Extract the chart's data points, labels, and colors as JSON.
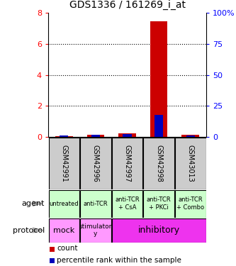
{
  "title": "GDS1336 / 161269_i_at",
  "samples": [
    "GSM42991",
    "GSM42996",
    "GSM42997",
    "GSM42998",
    "GSM43013"
  ],
  "count_values": [
    0.05,
    0.15,
    0.25,
    7.45,
    0.12
  ],
  "percentile_values": [
    1.0,
    1.5,
    2.2,
    17.5,
    1.2
  ],
  "ylim_left": [
    0,
    8
  ],
  "ylim_right": [
    0,
    100
  ],
  "yticks_left": [
    0,
    2,
    4,
    6,
    8
  ],
  "ytick_labels_left": [
    "0",
    "2",
    "4",
    "6",
    "8"
  ],
  "yticks_right": [
    0,
    25,
    50,
    75,
    100
  ],
  "ytick_labels_right": [
    "0",
    "25",
    "50",
    "75",
    "100%"
  ],
  "agent_labels": [
    "untreated",
    "anti-TCR",
    "anti-TCR\n+ CsA",
    "anti-TCR\n+ PKCi",
    "anti-TCR\n+ Combo"
  ],
  "agent_bg_color": "#ccffcc",
  "sample_bg_color": "#cccccc",
  "count_color": "#cc0000",
  "percentile_color": "#0000bb",
  "protocol_mock_color": "#ff99ff",
  "protocol_stimulatory_color": "#ff99ff",
  "protocol_inhibitory_color": "#ee33ee",
  "legend_count_label": "count",
  "legend_percentile_label": "percentile rank within the sample"
}
